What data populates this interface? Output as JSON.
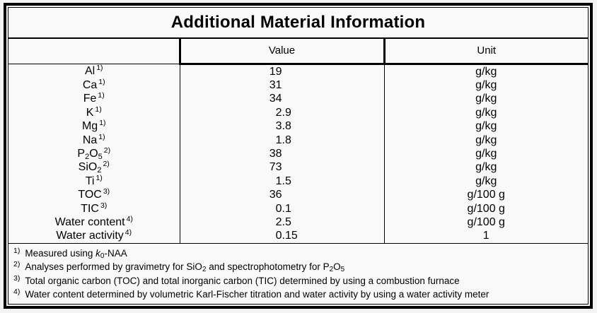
{
  "title": "Additional Material Information",
  "header": {
    "param": "",
    "value": "Value",
    "unit": "Unit"
  },
  "rows": [
    {
      "label": [
        {
          "t": "Al"
        }
      ],
      "marker": "1)",
      "value": "19",
      "unit": "g/kg"
    },
    {
      "label": [
        {
          "t": "Ca"
        }
      ],
      "marker": "1)",
      "value": "31",
      "unit": "g/kg"
    },
    {
      "label": [
        {
          "t": "Fe"
        }
      ],
      "marker": "1)",
      "value": "34",
      "unit": "g/kg"
    },
    {
      "label": [
        {
          "t": "K"
        }
      ],
      "marker": "1)",
      "value": "2.9",
      "unit": "g/kg"
    },
    {
      "label": [
        {
          "t": "Mg"
        }
      ],
      "marker": "1)",
      "value": "3.8",
      "unit": "g/kg"
    },
    {
      "label": [
        {
          "t": "Na"
        }
      ],
      "marker": "1)",
      "value": "1.8",
      "unit": "g/kg"
    },
    {
      "label": [
        {
          "t": "P"
        },
        {
          "t": "2",
          "s": "sub"
        },
        {
          "t": "O"
        },
        {
          "t": "5",
          "s": "sub"
        }
      ],
      "marker": "2)",
      "value": "38",
      "unit": "g/kg"
    },
    {
      "label": [
        {
          "t": "SiO"
        },
        {
          "t": "2",
          "s": "sub"
        }
      ],
      "marker": "2)",
      "value": "73",
      "unit": "g/kg"
    },
    {
      "label": [
        {
          "t": "Ti"
        }
      ],
      "marker": "1)",
      "value": "1.5",
      "unit": "g/kg"
    },
    {
      "label": [
        {
          "t": "TOC"
        }
      ],
      "marker": "3)",
      "value": "36",
      "unit": "g/100 g"
    },
    {
      "label": [
        {
          "t": "TIC"
        }
      ],
      "marker": "3)",
      "value": "0.1",
      "unit": "g/100 g"
    },
    {
      "label": [
        {
          "t": "Water content"
        }
      ],
      "marker": "4)",
      "value": "2.5",
      "unit": "g/100 g"
    },
    {
      "label": [
        {
          "t": "Water activity"
        }
      ],
      "marker": "4)",
      "value": "0.15",
      "unit": "1"
    }
  ],
  "footnotes": [
    {
      "marker": "1)",
      "text": [
        {
          "t": "Measured using "
        },
        {
          "t": "k",
          "s": "i"
        },
        {
          "t": "0",
          "s": "sub"
        },
        {
          "t": "-NAA"
        }
      ]
    },
    {
      "marker": "2)",
      "text": [
        {
          "t": "Analyses performed by gravimetry for SiO"
        },
        {
          "t": "2",
          "s": "sub"
        },
        {
          "t": " and spectrophotometry for P"
        },
        {
          "t": "2",
          "s": "sub"
        },
        {
          "t": "O"
        },
        {
          "t": "5",
          "s": "sub"
        }
      ]
    },
    {
      "marker": "3)",
      "text": [
        {
          "t": "Total organic carbon (TOC) and total inorganic carbon (TIC) determined by using a combustion furnace"
        }
      ]
    },
    {
      "marker": "4)",
      "text": [
        {
          "t": "Water content determined by volumetric Karl-Fischer titration and water activity by using a water activity meter"
        }
      ]
    }
  ],
  "colors": {
    "border": "#000000",
    "table_background": "#f9f9f9",
    "page_background": "#f4f4f4",
    "text": "#000000"
  }
}
